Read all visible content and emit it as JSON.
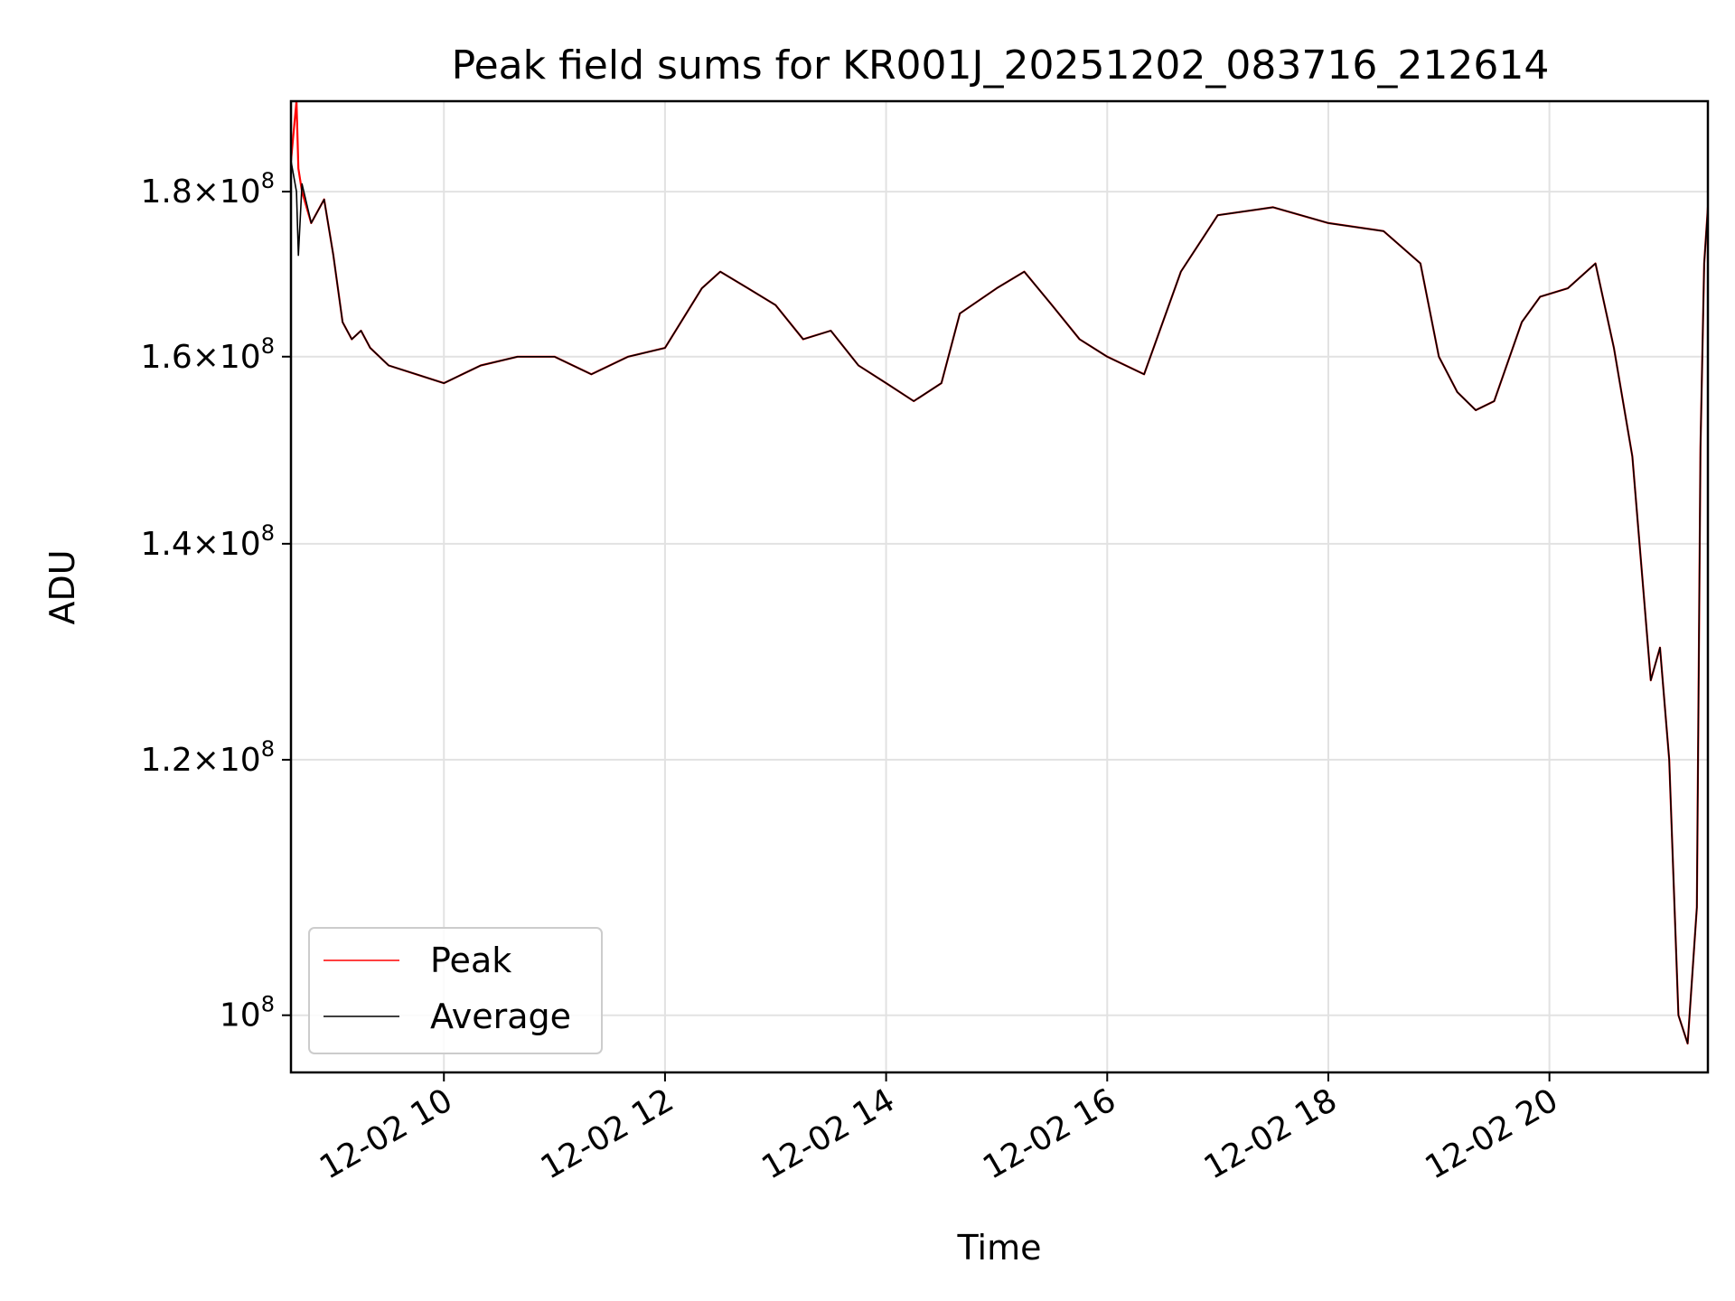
{
  "chart_data": {
    "type": "line",
    "title": "Peak field sums for KR001J_20251202_083716_212614",
    "xlabel": "Time",
    "ylabel": "ADU",
    "yscale": "log",
    "xlim": [
      "2025-12-02 08:37",
      "2025-12-02 21:26"
    ],
    "ylim": [
      96000000,
      192000000
    ],
    "grid": true,
    "legend_location": "lower left",
    "x_ticks": [
      {
        "value": "2025-12-02 10:00",
        "label": "12-02 10"
      },
      {
        "value": "2025-12-02 12:00",
        "label": "12-02 12"
      },
      {
        "value": "2025-12-02 14:00",
        "label": "12-02 14"
      },
      {
        "value": "2025-12-02 16:00",
        "label": "12-02 16"
      },
      {
        "value": "2025-12-02 18:00",
        "label": "12-02 18"
      },
      {
        "value": "2025-12-02 20:00",
        "label": "12-02 20"
      }
    ],
    "y_ticks": [
      {
        "value": 100000000,
        "mantissa": "",
        "exponent": "8"
      },
      {
        "value": 120000000,
        "mantissa": "1.2",
        "exponent": "8"
      },
      {
        "value": 140000000,
        "mantissa": "1.4",
        "exponent": "8"
      },
      {
        "value": 160000000,
        "mantissa": "1.6",
        "exponent": "8"
      },
      {
        "value": 180000000,
        "mantissa": "1.8",
        "exponent": "8"
      }
    ],
    "x": [
      "2025-12-02 08:37",
      "2025-12-02 08:40",
      "2025-12-02 08:41",
      "2025-12-02 08:43",
      "2025-12-02 08:48",
      "2025-12-02 08:55",
      "2025-12-02 09:00",
      "2025-12-02 09:05",
      "2025-12-02 09:10",
      "2025-12-02 09:15",
      "2025-12-02 09:20",
      "2025-12-02 09:30",
      "2025-12-02 09:45",
      "2025-12-02 10:00",
      "2025-12-02 10:20",
      "2025-12-02 10:40",
      "2025-12-02 11:00",
      "2025-12-02 11:20",
      "2025-12-02 11:40",
      "2025-12-02 12:00",
      "2025-12-02 12:20",
      "2025-12-02 12:30",
      "2025-12-02 12:45",
      "2025-12-02 13:00",
      "2025-12-02 13:15",
      "2025-12-02 13:30",
      "2025-12-02 13:45",
      "2025-12-02 14:00",
      "2025-12-02 14:15",
      "2025-12-02 14:30",
      "2025-12-02 14:40",
      "2025-12-02 15:00",
      "2025-12-02 15:15",
      "2025-12-02 15:30",
      "2025-12-02 15:45",
      "2025-12-02 16:00",
      "2025-12-02 16:20",
      "2025-12-02 16:40",
      "2025-12-02 17:00",
      "2025-12-02 17:30",
      "2025-12-02 18:00",
      "2025-12-02 18:30",
      "2025-12-02 18:50",
      "2025-12-02 19:00",
      "2025-12-02 19:10",
      "2025-12-02 19:20",
      "2025-12-02 19:30",
      "2025-12-02 19:45",
      "2025-12-02 19:55",
      "2025-12-02 20:10",
      "2025-12-02 20:25",
      "2025-12-02 20:35",
      "2025-12-02 20:45",
      "2025-12-02 20:55",
      "2025-12-02 21:00",
      "2025-12-02 21:05",
      "2025-12-02 21:10",
      "2025-12-02 21:15",
      "2025-12-02 21:20",
      "2025-12-02 21:22",
      "2025-12-02 21:24",
      "2025-12-02 21:26"
    ],
    "series": [
      {
        "name": "Peak",
        "color": "#ff0000",
        "values": [
          184000000,
          192000000,
          183000000,
          180000000,
          176000000,
          179000000,
          172000000,
          164000000,
          162000000,
          163000000,
          161000000,
          159000000,
          158000000,
          157000000,
          159000000,
          160000000,
          160000000,
          158000000,
          160000000,
          161000000,
          168000000,
          170000000,
          168000000,
          166000000,
          162000000,
          163000000,
          159000000,
          157000000,
          155000000,
          157000000,
          165000000,
          168000000,
          170000000,
          166000000,
          162000000,
          160000000,
          158000000,
          170000000,
          177000000,
          178000000,
          176000000,
          175000000,
          171000000,
          160000000,
          156000000,
          154000000,
          155000000,
          164000000,
          167000000,
          168000000,
          171000000,
          161000000,
          149000000,
          127000000,
          130000000,
          120000000,
          100000000,
          98000000,
          108000000,
          150000000,
          171000000,
          178000000
        ]
      },
      {
        "name": "Average",
        "color": "#000000",
        "values": [
          184000000,
          180000000,
          172000000,
          181000000,
          176000000,
          179000000,
          172000000,
          164000000,
          162000000,
          163000000,
          161000000,
          159000000,
          158000000,
          157000000,
          159000000,
          160000000,
          160000000,
          158000000,
          160000000,
          161000000,
          168000000,
          170000000,
          168000000,
          166000000,
          162000000,
          163000000,
          159000000,
          157000000,
          155000000,
          157000000,
          165000000,
          168000000,
          170000000,
          166000000,
          162000000,
          160000000,
          158000000,
          170000000,
          177000000,
          178000000,
          176000000,
          175000000,
          171000000,
          160000000,
          156000000,
          154000000,
          155000000,
          164000000,
          167000000,
          168000000,
          171000000,
          161000000,
          149000000,
          127000000,
          130000000,
          120000000,
          100000000,
          98000000,
          108000000,
          150000000,
          171000000,
          178000000
        ]
      }
    ]
  }
}
